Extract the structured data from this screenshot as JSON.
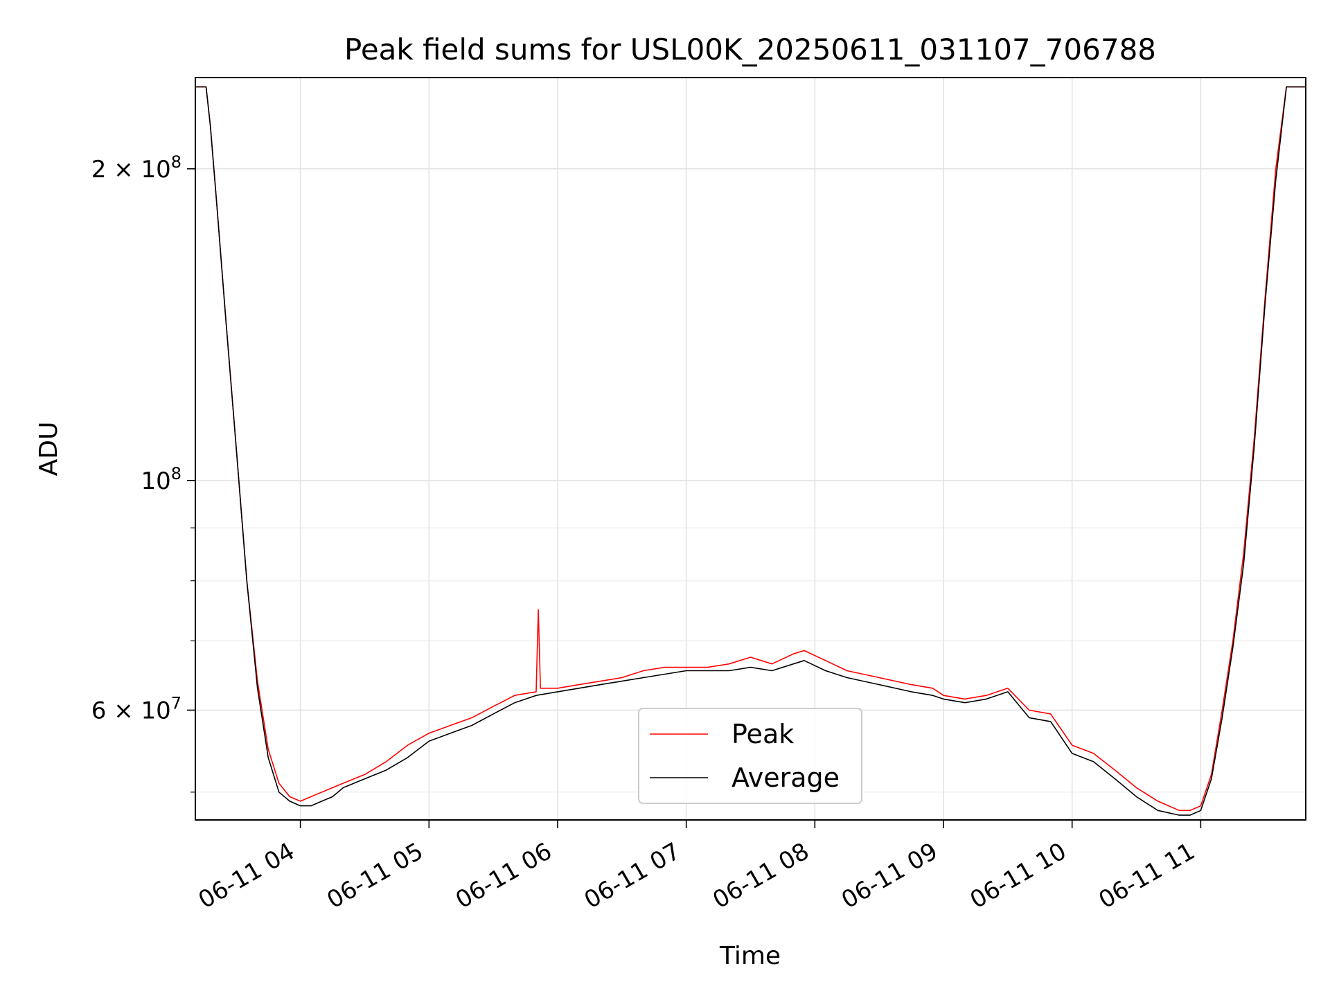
{
  "chart_data": {
    "type": "line",
    "title": "Peak field sums for USL00K_20250611_031107_706788",
    "xlabel": "Time",
    "ylabel": "ADU",
    "xlim": [
      "2025-06-11 03:11",
      "2025-06-11 11:49"
    ],
    "ylim": [
      47000000,
      245000000
    ],
    "y_scale": "log",
    "grid": true,
    "legend_position": "lower center",
    "x_ticks": [
      {
        "value": "2025-06-11 04:00",
        "label": "06-11 04"
      },
      {
        "value": "2025-06-11 05:00",
        "label": "06-11 05"
      },
      {
        "value": "2025-06-11 06:00",
        "label": "06-11 06"
      },
      {
        "value": "2025-06-11 07:00",
        "label": "06-11 07"
      },
      {
        "value": "2025-06-11 08:00",
        "label": "06-11 08"
      },
      {
        "value": "2025-06-11 09:00",
        "label": "06-11 09"
      },
      {
        "value": "2025-06-11 10:00",
        "label": "06-11 10"
      },
      {
        "value": "2025-06-11 11:00",
        "label": "06-11 11"
      }
    ],
    "y_ticks_major": [
      {
        "value": 60000000,
        "base": "6 × 10",
        "exp": "7"
      },
      {
        "value": 100000000,
        "base": "10",
        "exp": "8"
      },
      {
        "value": 200000000,
        "base": "2 × 10",
        "exp": "8"
      }
    ],
    "y_ticks_minor": [
      50000000,
      70000000,
      80000000,
      90000000,
      300000000
    ],
    "series": [
      {
        "name": "Peak",
        "color": "#ff0000",
        "x": [
          "2025-06-11 03:11",
          "2025-06-11 03:16",
          "2025-06-11 03:18",
          "2025-06-11 03:21",
          "2025-06-11 03:25",
          "2025-06-11 03:30",
          "2025-06-11 03:35",
          "2025-06-11 03:40",
          "2025-06-11 03:45",
          "2025-06-11 03:50",
          "2025-06-11 03:55",
          "2025-06-11 04:00",
          "2025-06-11 04:05",
          "2025-06-11 04:10",
          "2025-06-11 04:15",
          "2025-06-11 04:20",
          "2025-06-11 04:30",
          "2025-06-11 04:40",
          "2025-06-11 04:50",
          "2025-06-11 05:00",
          "2025-06-11 05:10",
          "2025-06-11 05:20",
          "2025-06-11 05:30",
          "2025-06-11 05:40",
          "2025-06-11 05:50",
          "2025-06-11 05:51",
          "2025-06-11 05:52",
          "2025-06-11 06:00",
          "2025-06-11 06:10",
          "2025-06-11 06:20",
          "2025-06-11 06:30",
          "2025-06-11 06:40",
          "2025-06-11 06:50",
          "2025-06-11 07:00",
          "2025-06-11 07:10",
          "2025-06-11 07:20",
          "2025-06-11 07:30",
          "2025-06-11 07:40",
          "2025-06-11 07:50",
          "2025-06-11 07:55",
          "2025-06-11 08:05",
          "2025-06-11 08:15",
          "2025-06-11 08:30",
          "2025-06-11 08:45",
          "2025-06-11 08:55",
          "2025-06-11 09:00",
          "2025-06-11 09:10",
          "2025-06-11 09:20",
          "2025-06-11 09:30",
          "2025-06-11 09:40",
          "2025-06-11 09:50",
          "2025-06-11 10:00",
          "2025-06-11 10:10",
          "2025-06-11 10:20",
          "2025-06-11 10:30",
          "2025-06-11 10:40",
          "2025-06-11 10:50",
          "2025-06-11 10:55",
          "2025-06-11 11:00",
          "2025-06-11 11:05",
          "2025-06-11 11:10",
          "2025-06-11 11:15",
          "2025-06-11 11:20",
          "2025-06-11 11:25",
          "2025-06-11 11:30",
          "2025-06-11 11:35",
          "2025-06-11 11:40",
          "2025-06-11 11:49"
        ],
        "values": [
          240000000,
          240000000,
          220000000,
          185000000,
          145000000,
          108000000,
          80000000,
          64000000,
          55000000,
          51000000,
          49500000,
          49000000,
          49500000,
          50000000,
          50500000,
          51000000,
          52000000,
          53500000,
          55500000,
          57000000,
          58000000,
          59000000,
          60500000,
          62000000,
          62500000,
          75000000,
          63000000,
          63000000,
          63500000,
          64000000,
          64500000,
          65500000,
          66000000,
          66000000,
          66000000,
          66500000,
          67500000,
          66500000,
          68000000,
          68500000,
          67000000,
          65500000,
          64500000,
          63500000,
          63000000,
          62000000,
          61500000,
          62000000,
          63000000,
          60000000,
          59500000,
          55500000,
          54500000,
          52500000,
          50500000,
          49000000,
          48000000,
          48000000,
          48500000,
          52000000,
          60000000,
          70000000,
          85000000,
          110000000,
          150000000,
          200000000,
          240000000,
          240000000
        ]
      },
      {
        "name": "Average",
        "color": "#000000",
        "x": [
          "2025-06-11 03:11",
          "2025-06-11 03:16",
          "2025-06-11 03:18",
          "2025-06-11 03:21",
          "2025-06-11 03:25",
          "2025-06-11 03:30",
          "2025-06-11 03:35",
          "2025-06-11 03:40",
          "2025-06-11 03:45",
          "2025-06-11 03:50",
          "2025-06-11 03:55",
          "2025-06-11 04:00",
          "2025-06-11 04:05",
          "2025-06-11 04:10",
          "2025-06-11 04:15",
          "2025-06-11 04:20",
          "2025-06-11 04:30",
          "2025-06-11 04:40",
          "2025-06-11 04:50",
          "2025-06-11 05:00",
          "2025-06-11 05:10",
          "2025-06-11 05:20",
          "2025-06-11 05:30",
          "2025-06-11 05:40",
          "2025-06-11 05:50",
          "2025-06-11 06:00",
          "2025-06-11 06:10",
          "2025-06-11 06:20",
          "2025-06-11 06:30",
          "2025-06-11 06:40",
          "2025-06-11 06:50",
          "2025-06-11 07:00",
          "2025-06-11 07:10",
          "2025-06-11 07:20",
          "2025-06-11 07:30",
          "2025-06-11 07:40",
          "2025-06-11 07:50",
          "2025-06-11 07:55",
          "2025-06-11 08:05",
          "2025-06-11 08:15",
          "2025-06-11 08:30",
          "2025-06-11 08:45",
          "2025-06-11 08:55",
          "2025-06-11 09:00",
          "2025-06-11 09:10",
          "2025-06-11 09:20",
          "2025-06-11 09:30",
          "2025-06-11 09:40",
          "2025-06-11 09:50",
          "2025-06-11 10:00",
          "2025-06-11 10:10",
          "2025-06-11 10:20",
          "2025-06-11 10:30",
          "2025-06-11 10:40",
          "2025-06-11 10:50",
          "2025-06-11 10:55",
          "2025-06-11 11:00",
          "2025-06-11 11:05",
          "2025-06-11 11:10",
          "2025-06-11 11:15",
          "2025-06-11 11:20",
          "2025-06-11 11:25",
          "2025-06-11 11:30",
          "2025-06-11 11:35",
          "2025-06-11 11:40",
          "2025-06-11 11:49"
        ],
        "values": [
          240000000,
          240000000,
          220000000,
          185000000,
          145000000,
          108000000,
          80000000,
          63000000,
          54000000,
          50000000,
          49000000,
          48500000,
          48500000,
          49000000,
          49500000,
          50500000,
          51500000,
          52500000,
          54000000,
          56000000,
          57000000,
          58000000,
          59500000,
          61000000,
          62000000,
          62500000,
          63000000,
          63500000,
          64000000,
          64500000,
          65000000,
          65500000,
          65500000,
          65500000,
          66000000,
          65500000,
          66500000,
          67000000,
          65500000,
          64500000,
          63500000,
          62500000,
          62000000,
          61500000,
          61000000,
          61500000,
          62500000,
          59000000,
          58500000,
          54500000,
          53500000,
          51500000,
          49500000,
          48000000,
          47500000,
          47500000,
          48000000,
          51500000,
          59000000,
          69000000,
          83000000,
          108000000,
          148000000,
          195000000,
          240000000,
          240000000
        ]
      }
    ]
  }
}
